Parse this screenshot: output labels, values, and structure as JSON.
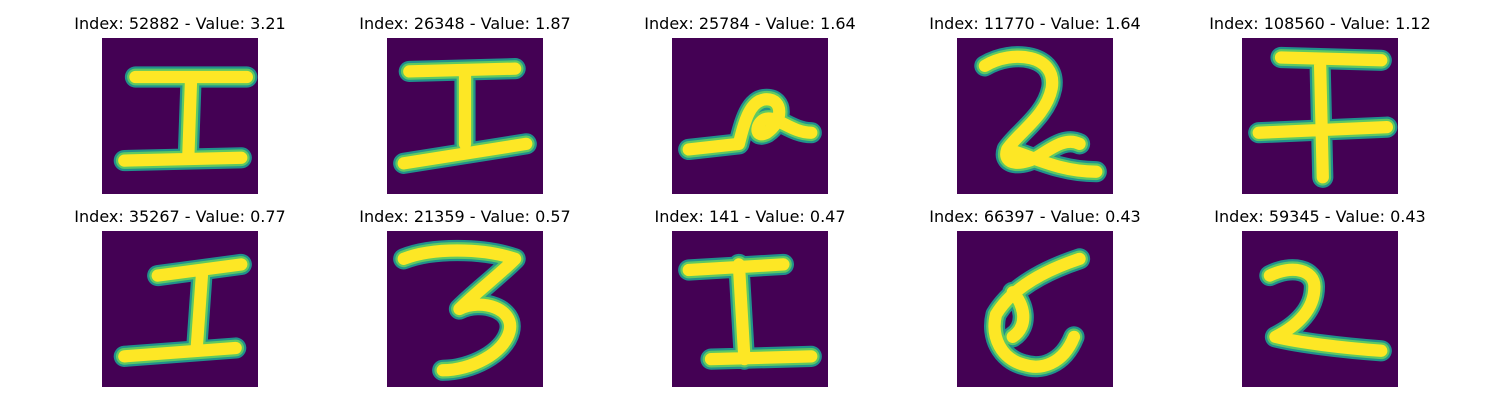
{
  "colors": {
    "background": "#440154",
    "stroke_core": "#fde725",
    "stroke_mid": "#5ec962",
    "stroke_edge": "#21918c"
  },
  "panels": [
    {
      "title": "Index: 52882 - Value: 3.21",
      "glyph": "I"
    },
    {
      "title": "Index: 26348 - Value: 1.87",
      "glyph": "I"
    },
    {
      "title": "Index: 25784 - Value: 1.64",
      "glyph": "loop"
    },
    {
      "title": "Index: 11770 - Value: 1.64",
      "glyph": "2"
    },
    {
      "title": "Index: 108560 - Value: 1.12",
      "glyph": "T"
    },
    {
      "title": "Index: 35267 - Value: 0.77",
      "glyph": "I"
    },
    {
      "title": "Index: 21359 - Value: 0.57",
      "glyph": "3"
    },
    {
      "title": "Index: 141 - Value: 0.47",
      "glyph": "I"
    },
    {
      "title": "Index: 66397 - Value: 0.43",
      "glyph": "blob"
    },
    {
      "title": "Index: 59345 - Value: 0.43",
      "glyph": "2"
    }
  ]
}
